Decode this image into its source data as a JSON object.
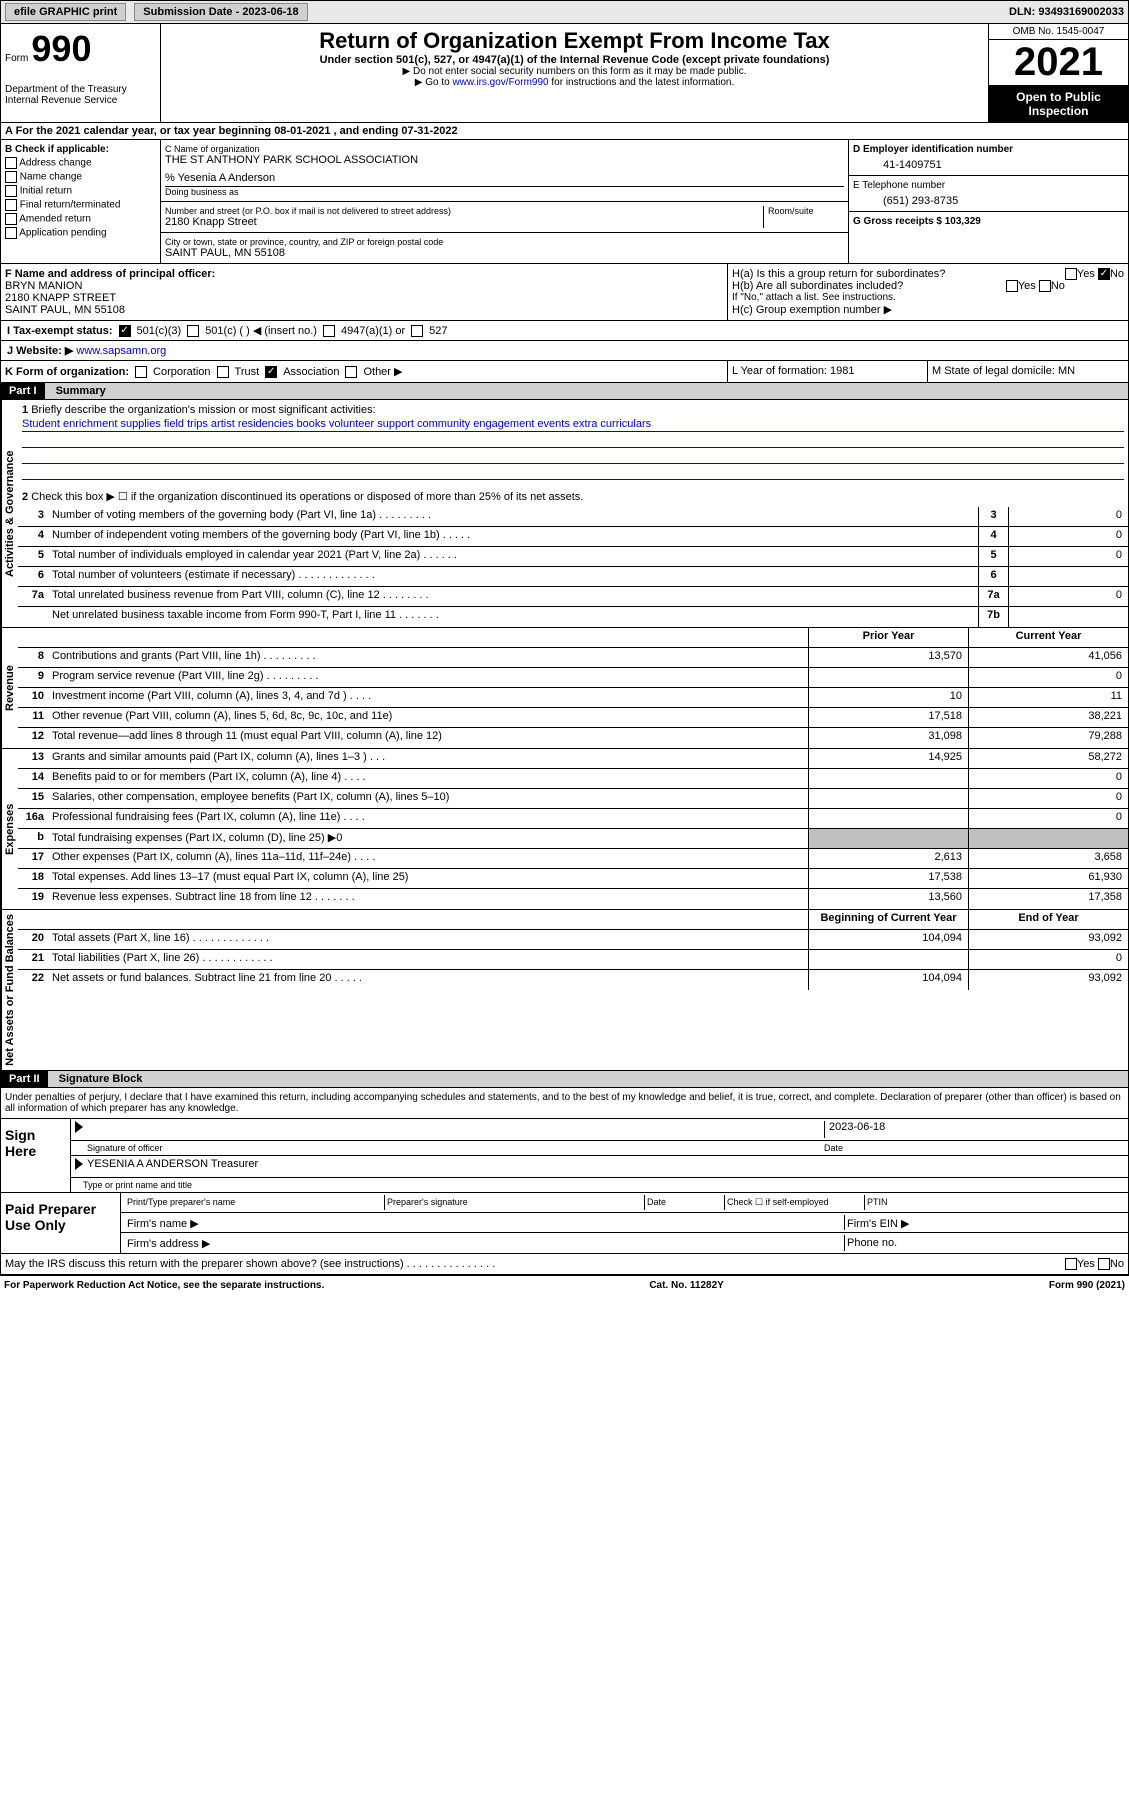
{
  "topbar": {
    "efile": "efile GRAPHIC print",
    "submission": "Submission Date - 2023-06-18",
    "dln": "DLN: 93493169002033"
  },
  "header": {
    "form_prefix": "Form",
    "form_num": "990",
    "dept": "Department of the Treasury Internal Revenue Service",
    "title": "Return of Organization Exempt From Income Tax",
    "subtitle": "Under section 501(c), 527, or 4947(a)(1) of the Internal Revenue Code (except private foundations)",
    "note1": "▶ Do not enter social security numbers on this form as it may be made public.",
    "note2_pre": "▶ Go to ",
    "note2_link": "www.irs.gov/Form990",
    "note2_post": " for instructions and the latest information.",
    "omb": "OMB No. 1545-0047",
    "year": "2021",
    "openpub": "Open to Public Inspection"
  },
  "row_a": "A For the 2021 calendar year, or tax year beginning 08-01-2021  , and ending 07-31-2022",
  "col_b": {
    "header": "B Check if applicable:",
    "items": [
      "Address change",
      "Name change",
      "Initial return",
      "Final return/terminated",
      "Amended return",
      "Application pending"
    ]
  },
  "col_c": {
    "name_label": "C Name of organization",
    "name": "THE ST ANTHONY PARK SCHOOL ASSOCIATION",
    "care_of": "% Yesenia A Anderson",
    "dba_label": "Doing business as",
    "addr_label": "Number and street (or P.O. box if mail is not delivered to street address)",
    "addr": "2180 Knapp Street",
    "room_label": "Room/suite",
    "city_label": "City or town, state or province, country, and ZIP or foreign postal code",
    "city": "SAINT PAUL, MN  55108"
  },
  "col_d": {
    "ein_label": "D Employer identification number",
    "ein": "41-1409751",
    "phone_label": "E Telephone number",
    "phone": "(651) 293-8735",
    "gross_label": "G Gross receipts $",
    "gross": "103,329"
  },
  "officer": {
    "label": "F  Name and address of principal officer:",
    "name": "BRYN MANION",
    "addr": "2180 KNAPP STREET",
    "city": "SAINT PAUL, MN  55108"
  },
  "h_section": {
    "ha": "H(a)  Is this a group return for subordinates?",
    "hb": "H(b)  Are all subordinates included?",
    "hb_note": "If \"No,\" attach a list. See instructions.",
    "hc": "H(c)  Group exemption number ▶",
    "yes": "Yes",
    "no": "No"
  },
  "tax_status": {
    "label": "I   Tax-exempt status:",
    "opt1": "501(c)(3)",
    "opt2": "501(c) (  ) ◀ (insert no.)",
    "opt3": "4947(a)(1) or",
    "opt4": "527"
  },
  "website": {
    "label": "J   Website: ▶",
    "url": "www.sapsamn.org"
  },
  "form_org": {
    "label": "K Form of organization:",
    "opts": [
      "Corporation",
      "Trust",
      "Association",
      "Other ▶"
    ]
  },
  "formation": {
    "l": "L Year of formation: 1981",
    "m": "M State of legal domicile: MN"
  },
  "part1": {
    "header": "Part I",
    "title": "Summary",
    "line1_label": "Briefly describe the organization's mission or most significant activities:",
    "mission": "Student enrichment supplies field trips artist residencies books volunteer support community engagement events extra curriculars",
    "line2": "Check this box ▶ ☐  if the organization discontinued its operations or disposed of more than 25% of its net assets.",
    "lines_gov": [
      {
        "n": "3",
        "t": "Number of voting members of the governing body (Part VI, line 1a)  .  .  .  .  .  .  .  .  .",
        "bn": "3",
        "v": "0"
      },
      {
        "n": "4",
        "t": "Number of independent voting members of the governing body (Part VI, line 1b)  .  .  .  .  .",
        "bn": "4",
        "v": "0"
      },
      {
        "n": "5",
        "t": "Total number of individuals employed in calendar year 2021 (Part V, line 2a)  .  .  .  .  .  .",
        "bn": "5",
        "v": "0"
      },
      {
        "n": "6",
        "t": "Total number of volunteers (estimate if necessary)  .  .  .  .  .  .  .  .  .  .  .  .  .",
        "bn": "6",
        "v": ""
      },
      {
        "n": "7a",
        "t": "Total unrelated business revenue from Part VIII, column (C), line 12  .  .  .  .  .  .  .  .",
        "bn": "7a",
        "v": "0"
      },
      {
        "n": "",
        "t": "Net unrelated business taxable income from Form 990-T, Part I, line 11  .  .  .  .  .  .  .",
        "bn": "7b",
        "v": ""
      }
    ],
    "col_prior": "Prior Year",
    "col_current": "Current Year",
    "lines_rev": [
      {
        "n": "8",
        "t": "Contributions and grants (Part VIII, line 1h)  .  .  .  .  .  .  .  .  .",
        "p": "13,570",
        "c": "41,056"
      },
      {
        "n": "9",
        "t": "Program service revenue (Part VIII, line 2g)  .  .  .  .  .  .  .  .  .",
        "p": "",
        "c": "0"
      },
      {
        "n": "10",
        "t": "Investment income (Part VIII, column (A), lines 3, 4, and 7d )  .  .  .  .",
        "p": "10",
        "c": "11"
      },
      {
        "n": "11",
        "t": "Other revenue (Part VIII, column (A), lines 5, 6d, 8c, 9c, 10c, and 11e)",
        "p": "17,518",
        "c": "38,221"
      },
      {
        "n": "12",
        "t": "Total revenue—add lines 8 through 11 (must equal Part VIII, column (A), line 12)",
        "p": "31,098",
        "c": "79,288"
      }
    ],
    "lines_exp": [
      {
        "n": "13",
        "t": "Grants and similar amounts paid (Part IX, column (A), lines 1–3 )  .  .  .",
        "p": "14,925",
        "c": "58,272"
      },
      {
        "n": "14",
        "t": "Benefits paid to or for members (Part IX, column (A), line 4)  .  .  .  .",
        "p": "",
        "c": "0"
      },
      {
        "n": "15",
        "t": "Salaries, other compensation, employee benefits (Part IX, column (A), lines 5–10)",
        "p": "",
        "c": "0"
      },
      {
        "n": "16a",
        "t": "Professional fundraising fees (Part IX, column (A), line 11e)  .  .  .  .",
        "p": "",
        "c": "0"
      },
      {
        "n": "b",
        "t": "Total fundraising expenses (Part IX, column (D), line 25) ▶0",
        "p": "gray",
        "c": "gray"
      },
      {
        "n": "17",
        "t": "Other expenses (Part IX, column (A), lines 11a–11d, 11f–24e)  .  .  .  .",
        "p": "2,613",
        "c": "3,658"
      },
      {
        "n": "18",
        "t": "Total expenses. Add lines 13–17 (must equal Part IX, column (A), line 25)",
        "p": "17,538",
        "c": "61,930"
      },
      {
        "n": "19",
        "t": "Revenue less expenses. Subtract line 18 from line 12  .  .  .  .  .  .  .",
        "p": "13,560",
        "c": "17,358"
      }
    ],
    "col_begin": "Beginning of Current Year",
    "col_end": "End of Year",
    "lines_net": [
      {
        "n": "20",
        "t": "Total assets (Part X, line 16)  .  .  .  .  .  .  .  .  .  .  .  .  .",
        "p": "104,094",
        "c": "93,092"
      },
      {
        "n": "21",
        "t": "Total liabilities (Part X, line 26)   .  .  .  .  .  .  .  .  .  .  .  .",
        "p": "",
        "c": "0"
      },
      {
        "n": "22",
        "t": "Net assets or fund balances. Subtract line 21 from line 20  .  .  .  .  .",
        "p": "104,094",
        "c": "93,092"
      }
    ]
  },
  "vert_labels": {
    "gov": "Activities & Governance",
    "rev": "Revenue",
    "exp": "Expenses",
    "net": "Net Assets or Fund Balances"
  },
  "part2": {
    "header": "Part II",
    "title": "Signature Block",
    "intro": "Under penalties of perjury, I declare that I have examined this return, including accompanying schedules and statements, and to the best of my knowledge and belief, it is true, correct, and complete. Declaration of preparer (other than officer) is based on all information of which preparer has any knowledge.",
    "sign_here": "Sign Here",
    "sig_officer": "Signature of officer",
    "sig_date": "2023-06-18",
    "officer_name": "YESENIA A ANDERSON Treasurer",
    "type_name": "Type or print name and title",
    "paid_prep": "Paid Preparer Use Only",
    "prep_name": "Print/Type preparer's name",
    "prep_sig": "Preparer's signature",
    "date": "Date",
    "check_self": "Check ☐  if self-employed",
    "ptin": "PTIN",
    "firm_name": "Firm's name  ▶",
    "firm_ein": "Firm's EIN ▶",
    "firm_addr": "Firm's address ▶",
    "phone": "Phone no.",
    "discuss": "May the IRS discuss this return with the preparer shown above? (see instructions)  .  .  .  .  .  .  .  .  .  .  .  .  .  .  .",
    "yes": "Yes",
    "no": "No"
  },
  "footer": {
    "left": "For Paperwork Reduction Act Notice, see the separate instructions.",
    "mid": "Cat. No. 11282Y",
    "right": "Form 990 (2021)"
  }
}
